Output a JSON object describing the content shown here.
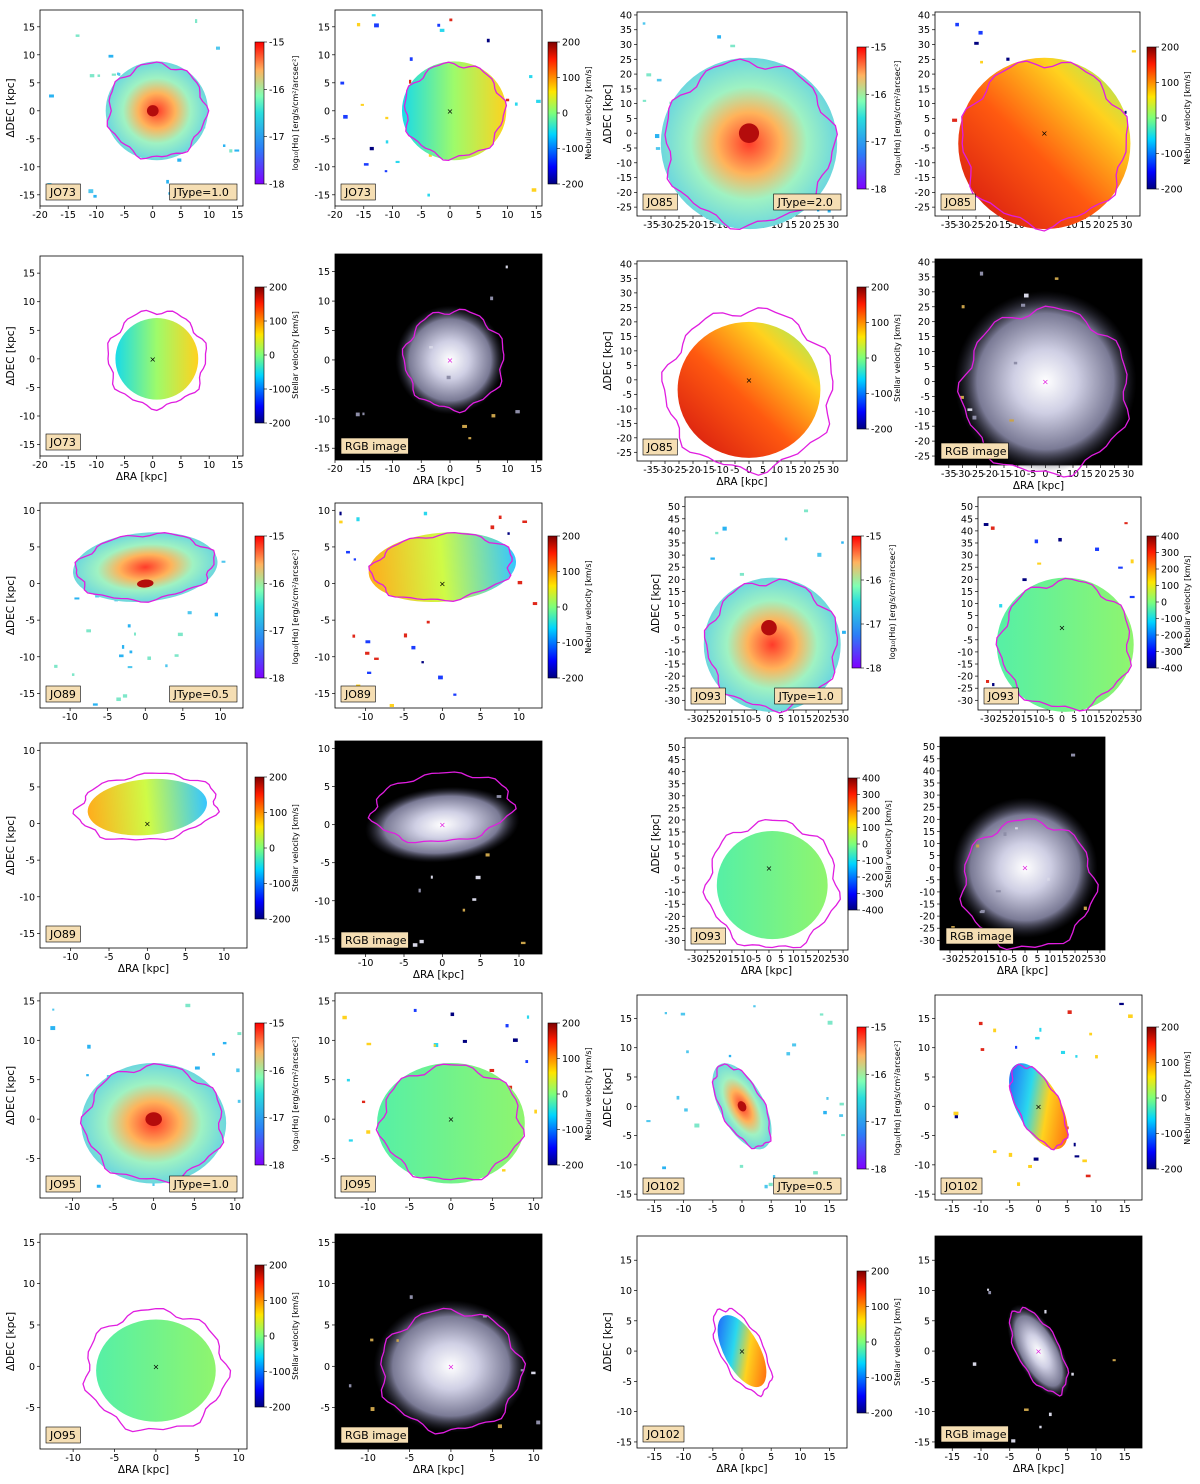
{
  "axis_labels": {
    "ra": "ΔRA [kpc]",
    "dec": "ΔDEC [kpc]",
    "ha": "log₁₀(Hα) [erg/s/cm²/arcsec²]",
    "neb": "Nebular velocity [km/s]",
    "star": "Stellar velocity [km/s]"
  },
  "rgb_label": "RGB image",
  "colors": {
    "contour": "#e01de0",
    "tag_bg": "#f5deb3",
    "panel_bg_map": "#ffffff",
    "panel_bg_rgb": "#000000"
  },
  "galaxies": [
    {
      "id": "JO73",
      "jtype": "JType=1.0",
      "ranges": {
        "ra": [
          -20,
          16
        ],
        "dec": [
          -17,
          18
        ]
      },
      "ra_ticks": [
        -20,
        -15,
        -10,
        -5,
        0,
        5,
        10,
        15
      ],
      "dec_ticks": [
        -15,
        -10,
        -5,
        0,
        5,
        10,
        15
      ],
      "ha_ticks": [
        -15,
        -16,
        -17,
        -18
      ],
      "neb_ticks": [
        200,
        100,
        0,
        -100,
        -200
      ],
      "star_ticks": [
        200,
        100,
        0,
        -100,
        -200
      ]
    },
    {
      "id": "JO85",
      "jtype": "JType=2.0",
      "ranges": {
        "ra": [
          -40,
          35
        ],
        "dec": [
          -28,
          41
        ]
      },
      "ra_ticks": [
        -35,
        -30,
        -25,
        -20,
        -15,
        -10,
        -5,
        0,
        5,
        10,
        15,
        20,
        25,
        30
      ],
      "dec_ticks": [
        -25,
        -20,
        -15,
        -10,
        -5,
        0,
        5,
        10,
        15,
        20,
        25,
        30,
        35,
        40
      ],
      "ha_ticks": [
        -15,
        -16,
        -17,
        -18
      ],
      "neb_ticks": [
        200,
        100,
        0,
        -100,
        -200
      ],
      "star_ticks": [
        200,
        100,
        0,
        -100,
        -200
      ]
    },
    {
      "id": "JO89",
      "jtype": "JType=0.5",
      "ranges": {
        "ra": [
          -14,
          13
        ],
        "dec": [
          -17,
          11
        ]
      },
      "ra_ticks": [
        -10,
        -5,
        0,
        5,
        10
      ],
      "dec_ticks": [
        -15,
        -10,
        -5,
        0,
        5,
        10
      ],
      "ha_ticks": [
        -15,
        -16,
        -17,
        -18
      ],
      "neb_ticks": [
        200,
        100,
        0,
        -100,
        -200
      ],
      "star_ticks": [
        200,
        100,
        0,
        -100,
        -200
      ]
    },
    {
      "id": "JO93",
      "jtype": "JType=1.0",
      "ranges": {
        "ra": [
          -34,
          32
        ],
        "dec": [
          -34,
          54
        ]
      },
      "ra_ticks": [
        -30,
        -25,
        -20,
        -15,
        -10,
        -5,
        0,
        5,
        10,
        15,
        20,
        25,
        30
      ],
      "dec_ticks": [
        -30,
        -25,
        -20,
        -15,
        -10,
        -5,
        0,
        5,
        10,
        15,
        20,
        25,
        30,
        35,
        40,
        45,
        50
      ],
      "ha_ticks": [
        -15,
        -16,
        -17,
        -18
      ],
      "neb_ticks": [
        400,
        300,
        200,
        100,
        0,
        -100,
        -200,
        -300,
        -400
      ],
      "star_ticks": [
        400,
        300,
        200,
        100,
        0,
        -100,
        -200,
        -300,
        -400
      ]
    },
    {
      "id": "JO95",
      "jtype": "JType=1.0",
      "ranges": {
        "ra": [
          -14,
          11
        ],
        "dec": [
          -10,
          16
        ]
      },
      "ra_ticks": [
        -10,
        -5,
        0,
        5,
        10
      ],
      "dec_ticks": [
        -5,
        0,
        5,
        10,
        15
      ],
      "ha_ticks": [
        -15,
        -16,
        -17,
        -18
      ],
      "neb_ticks": [
        200,
        100,
        0,
        -100,
        -200
      ],
      "star_ticks": [
        200,
        100,
        0,
        -100,
        -200
      ]
    },
    {
      "id": "JO102",
      "jtype": "JType=0.5",
      "ranges": {
        "ra": [
          -18,
          18
        ],
        "dec": [
          -16,
          19
        ]
      },
      "ra_ticks": [
        -15,
        -10,
        -5,
        0,
        5,
        10,
        15
      ],
      "dec_ticks": [
        -15,
        -10,
        -5,
        0,
        5,
        10,
        15
      ],
      "ha_ticks": [
        -15,
        -16,
        -17,
        -18
      ],
      "neb_ticks": [
        200,
        100,
        0,
        -100,
        -200
      ],
      "star_ticks": [
        200,
        100,
        0,
        -100,
        -200
      ]
    }
  ]
}
